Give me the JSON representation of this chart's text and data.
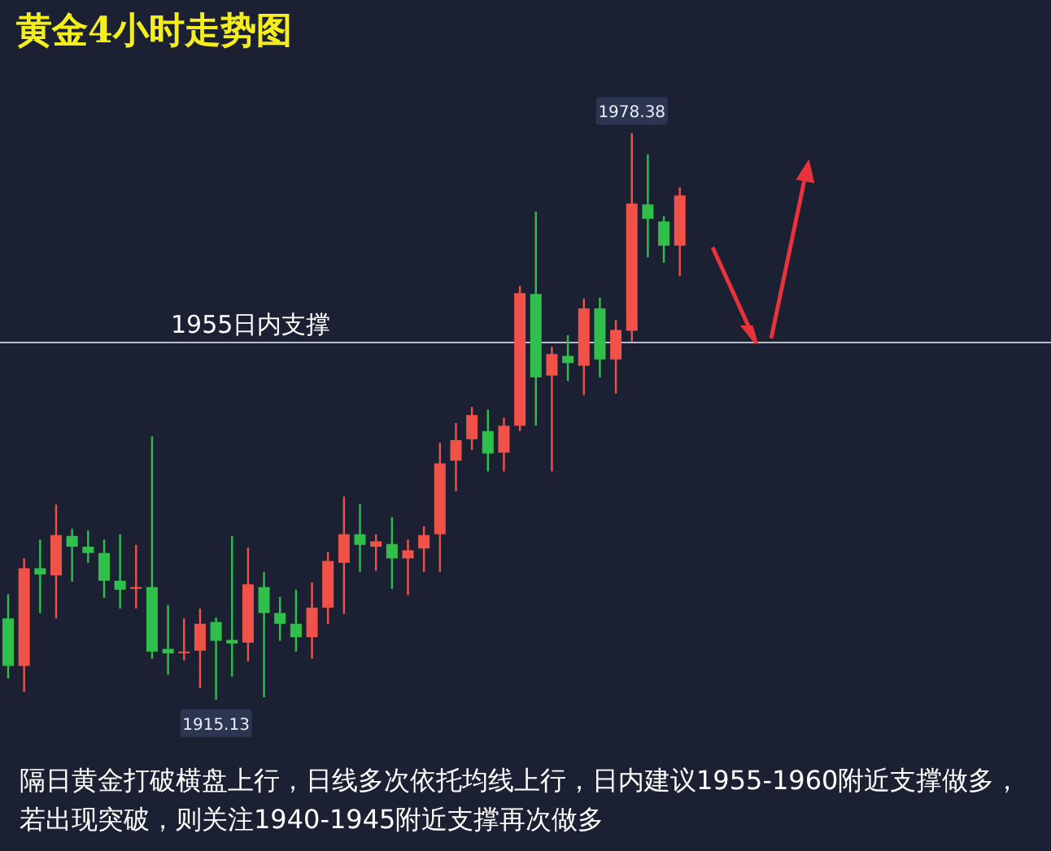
{
  "chart_data": {
    "type": "candlestick",
    "title": "黄金4小时走势图",
    "categories": [
      null,
      null,
      null,
      null,
      null,
      null,
      null,
      null,
      null,
      null,
      null,
      null,
      null,
      null,
      null,
      null,
      null,
      null,
      null,
      null,
      null,
      null,
      null,
      null,
      null,
      null,
      null,
      null,
      null,
      null,
      null,
      null,
      null,
      null,
      null,
      null,
      null,
      null,
      null,
      null,
      null,
      null,
      null
    ],
    "ohlc": [
      [
        1924.2,
        1926.9,
        1917.5,
        1918.9
      ],
      [
        1918.9,
        1930.9,
        1916.0,
        1929.8
      ],
      [
        1929.8,
        1933.0,
        1924.8,
        1929.1
      ],
      [
        1929.0,
        1936.9,
        1924.2,
        1933.5
      ],
      [
        1933.4,
        1934.2,
        1928.3,
        1932.2
      ],
      [
        1932.2,
        1934.0,
        1930.4,
        1931.5
      ],
      [
        1931.5,
        1933.0,
        1926.5,
        1928.4
      ],
      [
        1928.4,
        1933.6,
        1925.3,
        1927.4
      ],
      [
        1927.5,
        1932.4,
        1925.3,
        1927.7
      ],
      [
        1927.7,
        1944.5,
        1919.7,
        1920.5
      ],
      [
        1920.8,
        1925.7,
        1917.9,
        1920.3
      ],
      [
        1920.4,
        1924.2,
        1919.5,
        1920.5
      ],
      [
        1920.6,
        1925.3,
        1916.4,
        1923.6
      ],
      [
        1923.8,
        1924.3,
        1915.13,
        1921.7
      ],
      [
        1921.8,
        1933.4,
        1917.7,
        1921.4
      ],
      [
        1921.5,
        1932.1,
        1919.4,
        1928.0
      ],
      [
        1927.7,
        1929.4,
        1915.4,
        1924.8
      ],
      [
        1924.8,
        1926.6,
        1921.7,
        1923.6
      ],
      [
        1923.6,
        1927.4,
        1920.5,
        1922.1
      ],
      [
        1922.1,
        1928.2,
        1919.7,
        1925.4
      ],
      [
        1925.4,
        1931.6,
        1923.6,
        1930.6
      ],
      [
        1930.4,
        1937.8,
        1924.7,
        1933.6
      ],
      [
        1933.6,
        1937.0,
        1929.4,
        1932.4
      ],
      [
        1932.2,
        1933.6,
        1929.5,
        1932.8
      ],
      [
        1932.5,
        1935.5,
        1927.5,
        1930.9
      ],
      [
        1930.9,
        1933.0,
        1926.8,
        1931.8
      ],
      [
        1932.0,
        1934.5,
        1929.4,
        1933.5
      ],
      [
        1933.6,
        1943.8,
        1929.4,
        1941.5
      ],
      [
        1941.8,
        1946.0,
        1938.4,
        1944.1
      ],
      [
        1944.2,
        1947.8,
        1943.0,
        1946.9
      ],
      [
        1945.1,
        1947.5,
        1940.6,
        1942.6
      ],
      [
        1942.7,
        1946.6,
        1940.6,
        1945.7
      ],
      [
        1945.7,
        1961.3,
        1945.1,
        1960.5
      ],
      [
        1960.4,
        1969.6,
        1945.7,
        1951.1
      ],
      [
        1951.3,
        1954.5,
        1940.6,
        1953.7
      ],
      [
        1953.5,
        1955.8,
        1950.7,
        1952.7
      ],
      [
        1952.4,
        1959.9,
        1949.1,
        1958.8
      ],
      [
        1958.8,
        1960.0,
        1951.1,
        1953.1
      ],
      [
        1953.1,
        1957.5,
        1949.3,
        1956.4
      ],
      [
        1956.3,
        1978.38,
        1955.1,
        1970.5
      ],
      [
        1970.4,
        1976.0,
        1964.5,
        1968.8
      ],
      [
        1968.5,
        1969.1,
        1963.9,
        1965.8
      ],
      [
        1965.8,
        1972.3,
        1962.4,
        1971.4
      ]
    ],
    "colors": [
      "#2fbf4a",
      "#f0524a",
      "#2fbf4a",
      "#f0524a",
      "#2fbf4a",
      "#2fbf4a",
      "#2fbf4a",
      "#2fbf4a",
      "#f0524a",
      "#2fbf4a",
      "#2fbf4a",
      "#f0524a",
      "#f0524a",
      "#2fbf4a",
      "#2fbf4a",
      "#f0524a",
      "#2fbf4a",
      "#2fbf4a",
      "#2fbf4a",
      "#f0524a",
      "#f0524a",
      "#f0524a",
      "#2fbf4a",
      "#f0524a",
      "#2fbf4a",
      "#f0524a",
      "#f0524a",
      "#f0524a",
      "#f0524a",
      "#f0524a",
      "#2fbf4a",
      "#f0524a",
      "#f0524a",
      "#2fbf4a",
      "#f0524a",
      "#2fbf4a",
      "#f0524a",
      "#2fbf4a",
      "#f0524a",
      "#f0524a",
      "#2fbf4a",
      "#2fbf4a",
      "#f0524a"
    ],
    "ref_lines": [
      {
        "axis": "y",
        "value": 1955,
        "label": "1955日内支撑",
        "color": "#b8bcc8"
      }
    ],
    "annotations": [
      {
        "text": "1978.38",
        "y": 1978.38
      },
      {
        "text": "1915.13",
        "y": 1915.13
      },
      "隔日黄金打破横盘上行，日线多次依托均线上行，日内建议1955-1960附近支撑做多，若出现突破，则关注1940-1945附近支撑再次做多"
    ]
  }
}
